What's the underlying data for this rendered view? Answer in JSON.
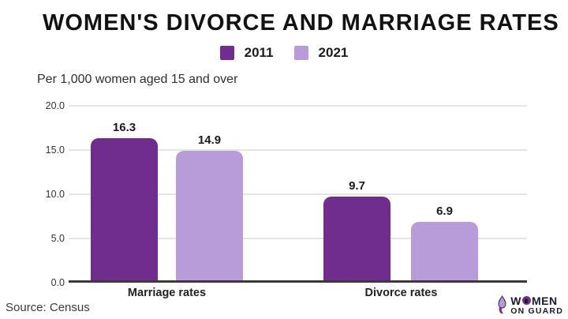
{
  "chart_data": {
    "type": "bar",
    "title": "WOMEN'S DIVORCE AND MARRIAGE RATES",
    "subtitle": "Per 1,000 women aged 15 and over",
    "categories": [
      "Marriage rates",
      "Divorce rates"
    ],
    "series": [
      {
        "name": "2011",
        "color": "#702d8e",
        "values": [
          16.3,
          9.7
        ]
      },
      {
        "name": "2021",
        "color": "#b89cda",
        "values": [
          14.9,
          6.9
        ]
      }
    ],
    "ylim": [
      0,
      20
    ],
    "yticks": [
      "20.0",
      "15.0",
      "10.0",
      "5.0",
      "0.0"
    ],
    "grid": "horizontal",
    "legend_position": "top-center",
    "axis_color": "#3a3a3a",
    "gridline_color": "#e4e4e4"
  },
  "footer": {
    "source": "Source: Census",
    "logo": {
      "line1_prefix": "W",
      "line1_suffix": "MEN",
      "line2": "ON GUARD"
    }
  }
}
